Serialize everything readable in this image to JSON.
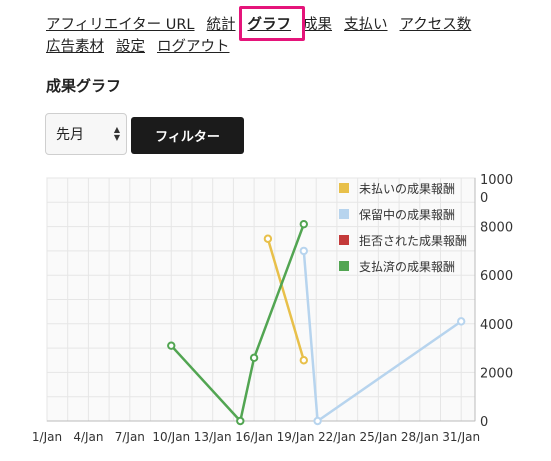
{
  "nav": {
    "row1": [
      {
        "label": "アフィリエイター URL",
        "name": "nav-affiliate-url",
        "active": false
      },
      {
        "label": "統計",
        "name": "nav-statistics",
        "active": false
      },
      {
        "label": "グラフ",
        "name": "nav-graph",
        "active": true
      },
      {
        "label": "成果",
        "name": "nav-results",
        "active": false
      },
      {
        "label": "支払い",
        "name": "nav-payments",
        "active": false
      },
      {
        "label": "アクセス数",
        "name": "nav-access-count",
        "active": false
      }
    ],
    "row2": [
      {
        "label": "広告素材",
        "name": "nav-ad-materials",
        "active": false
      },
      {
        "label": "設定",
        "name": "nav-settings",
        "active": false
      },
      {
        "label": "ログアウト",
        "name": "nav-logout",
        "active": false
      }
    ],
    "highlight_color": "#e5147a"
  },
  "page_title": "成果グラフ",
  "filter": {
    "period_value": "先月",
    "button_label": "フィルター"
  },
  "chart_data": {
    "type": "line",
    "x_ticks": [
      "1/Jan",
      "4/Jan",
      "7/Jan",
      "10/Jan",
      "13/Jan",
      "16/Jan",
      "19/Jan",
      "22/Jan",
      "25/Jan",
      "28/Jan",
      "31/Jan"
    ],
    "xlim": [
      1,
      32
    ],
    "y_ticks": [
      "0",
      "2000",
      "4000",
      "6000",
      "8000"
    ],
    "ylim": [
      0,
      10000
    ],
    "y_top_label": "1000",
    "y_top_sub": "0",
    "grid": true,
    "legend_position": "top-right",
    "series": [
      {
        "name": "未払いの成果報酬",
        "color": "#e8c04a",
        "points": [
          [
            17,
            7500
          ],
          [
            19.6,
            2500
          ]
        ]
      },
      {
        "name": "保留中の成果報酬",
        "color": "#b7d4ee",
        "points": [
          [
            19.6,
            7000
          ],
          [
            20.6,
            0
          ],
          [
            31,
            4100
          ]
        ]
      },
      {
        "name": "拒否された成果報酬",
        "color": "#c43a3a",
        "points": []
      },
      {
        "name": "支払済の成果報酬",
        "color": "#52a552",
        "points": [
          [
            10,
            3100
          ],
          [
            15,
            0
          ],
          [
            16,
            2600
          ],
          [
            19.6,
            8100
          ]
        ]
      }
    ]
  }
}
